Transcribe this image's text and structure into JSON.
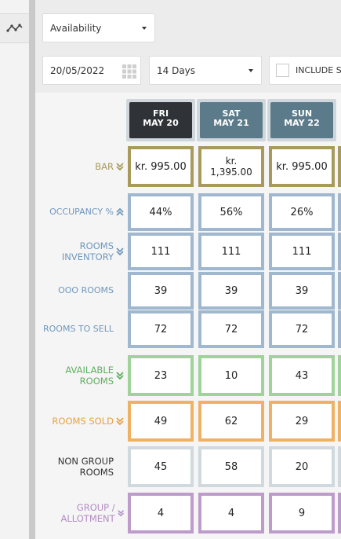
{
  "toolbar": {
    "view_select": "Availability",
    "date": "20/05/2022",
    "range_select": "14 Days",
    "include_label": "INCLUDE SPECIAL"
  },
  "days": [
    {
      "dow": "FRI",
      "date": "MAY 20",
      "color": "#2f3337"
    },
    {
      "dow": "SAT",
      "date": "MAY 21",
      "color": "#5b7b8b"
    },
    {
      "dow": "SUN",
      "date": "MAY 22",
      "color": "#5b7b8b"
    }
  ],
  "rows": [
    {
      "label": "BAR",
      "label_color": "#a79a5c",
      "border": "#a79a5c",
      "chevron": "down",
      "values": [
        "kr. 995.00",
        "kr. 1,395.00",
        "kr. 995.00"
      ]
    },
    {
      "label": "OCCUPANCY %",
      "label_color": "#6f97bd",
      "border": "#9fb8cf",
      "chevron": "up",
      "values": [
        "44%",
        "56%",
        "26%"
      ]
    },
    {
      "label": "ROOMS INVENTORY",
      "label_color": "#6f97bd",
      "border": "#9fb8cf",
      "chevron": "down",
      "values": [
        "111",
        "111",
        "111"
      ]
    },
    {
      "label": "OOO ROOMS",
      "label_color": "#6f97bd",
      "border": "#9fb8cf",
      "chevron": "",
      "values": [
        "39",
        "39",
        "39"
      ]
    },
    {
      "label": "ROOMS TO SELL",
      "label_color": "#6f97bd",
      "border": "#9fb8cf",
      "chevron": "",
      "values": [
        "72",
        "72",
        "72"
      ]
    },
    {
      "label": "AVAILABLE ROOMS",
      "label_color": "#5fae5f",
      "border": "#9fd39a",
      "chevron": "down",
      "values": [
        "23",
        "10",
        "43"
      ]
    },
    {
      "label": "ROOMS SOLD",
      "label_color": "#e8a143",
      "border": "#efb264",
      "chevron": "down",
      "values": [
        "49",
        "62",
        "29"
      ]
    },
    {
      "label": "NON GROUP ROOMS",
      "label_color": "#333333",
      "border": "#cfd9de",
      "chevron": "",
      "values": [
        "45",
        "58",
        "20"
      ]
    },
    {
      "label": "GROUP / ALLOTMENT",
      "label_color": "#b48cc4",
      "border": "#bd9ccb",
      "chevron": "down",
      "values": [
        "4",
        "4",
        "9"
      ]
    }
  ]
}
